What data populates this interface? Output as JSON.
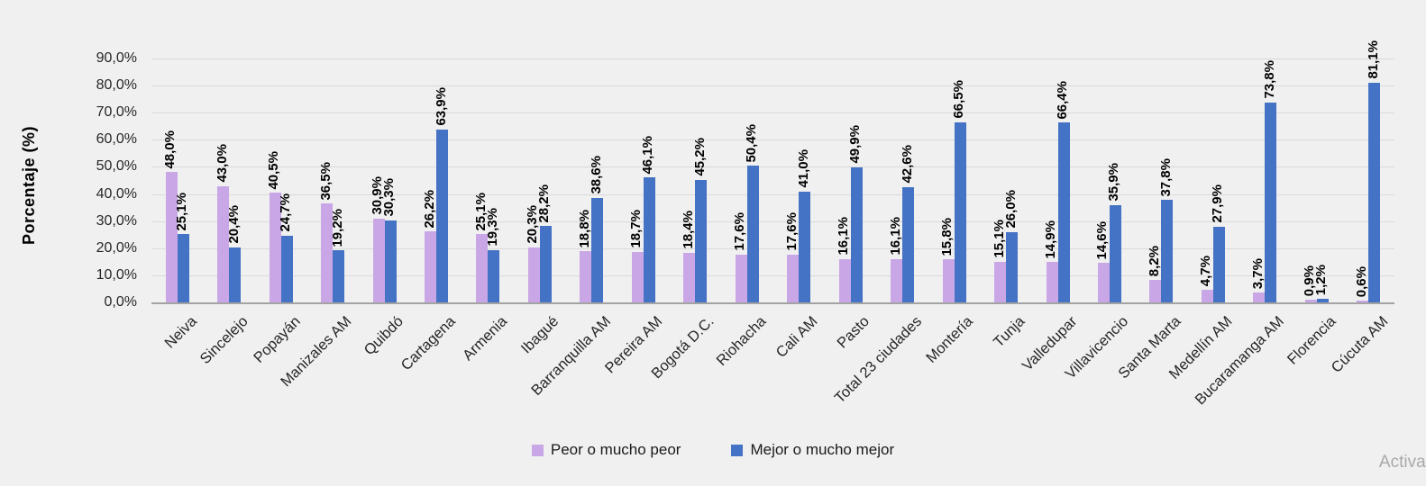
{
  "watermark": {
    "text": "Activar"
  },
  "colors": {
    "background": "#f0f0f0",
    "gridline": "#dadada",
    "axis_line": "#a3a3a3",
    "label_text": "#000000",
    "watermark_text": "#a9a9a9"
  },
  "chart_data": {
    "type": "bar",
    "title": "",
    "xlabel": "",
    "ylabel": "Porcentaje (%)",
    "ylim": [
      0,
      90
    ],
    "ytick_step": 10,
    "ytick_format": "es-decimal-percent",
    "grid": true,
    "legend_position": "bottom",
    "data_labels": "rotated-90-above-bars",
    "categories": [
      "Neiva",
      "Sincelejo",
      "Popayán",
      "Manizales AM",
      "Quibdó",
      "Cartagena",
      "Armenia",
      "Ibagué",
      "Barranquilla AM",
      "Pereira AM",
      "Bogotá D.C.",
      "Riohacha",
      "Cali AM",
      "Pasto",
      "Total 23 ciudades",
      "Montería",
      "Tunja",
      "Valledupar",
      "Villavicencio",
      "Santa Marta",
      "Medellín AM",
      "Bucaramanga AM",
      "Florencia",
      "Cúcuta AM"
    ],
    "series": [
      {
        "name": "Peor o mucho peor",
        "color": "#c9a7e6",
        "values": [
          48.0,
          43.0,
          40.5,
          36.5,
          30.9,
          26.2,
          25.1,
          20.3,
          18.8,
          18.7,
          18.4,
          17.6,
          17.6,
          16.1,
          16.1,
          15.8,
          15.1,
          14.9,
          14.6,
          8.2,
          4.7,
          3.7,
          0.9,
          0.6
        ]
      },
      {
        "name": "Mejor o mucho mejor",
        "color": "#4472c4",
        "values": [
          25.1,
          20.4,
          24.7,
          19.2,
          30.3,
          63.9,
          19.3,
          28.2,
          38.6,
          46.1,
          45.2,
          50.4,
          41.0,
          49.9,
          42.6,
          66.5,
          26.0,
          66.4,
          35.9,
          37.8,
          27.9,
          73.8,
          1.2,
          81.1
        ]
      }
    ]
  }
}
